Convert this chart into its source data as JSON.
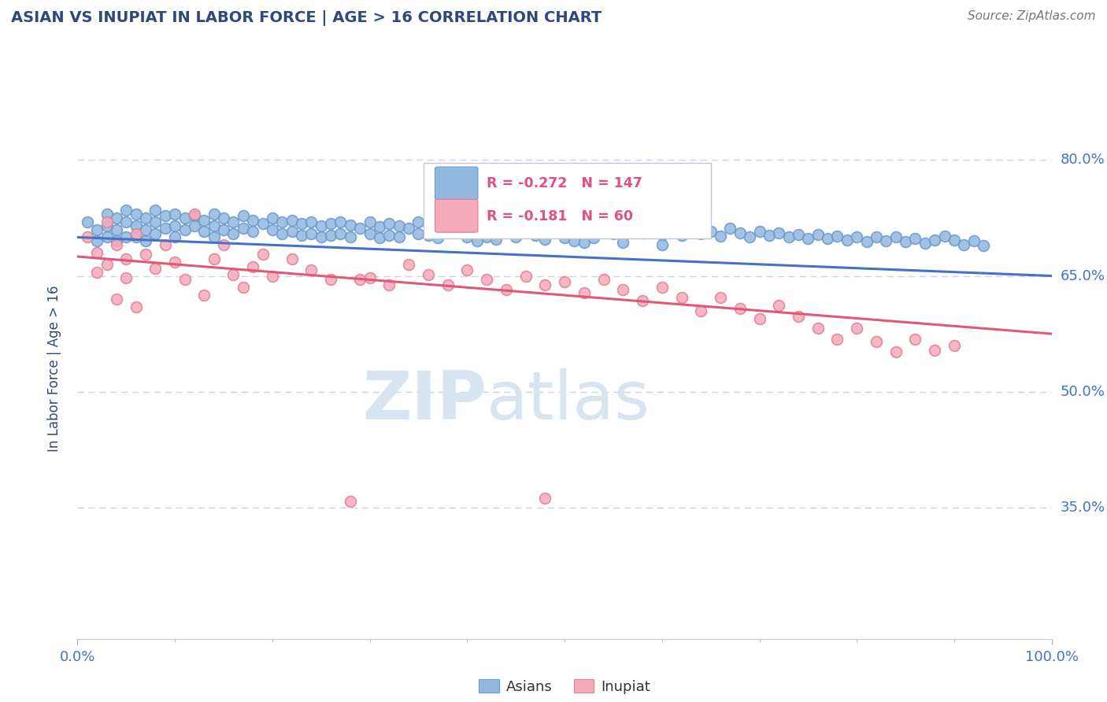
{
  "title": "ASIAN VS INUPIAT IN LABOR FORCE | AGE > 16 CORRELATION CHART",
  "source_text": "Source: ZipAtlas.com",
  "ylabel": "In Labor Force | Age > 16",
  "xlim": [
    0.0,
    1.0
  ],
  "ylim": [
    0.18,
    0.88
  ],
  "yticks": [
    0.35,
    0.5,
    0.65,
    0.8
  ],
  "ytick_labels": [
    "35.0%",
    "50.0%",
    "65.0%",
    "80.0%"
  ],
  "xtick_labels": [
    "0.0%",
    "100.0%"
  ],
  "title_color": "#2e4a7a",
  "source_color": "#777777",
  "axis_label_color": "#2e4a7a",
  "tick_label_color": "#4472c4",
  "grid_color": "#c8d4e8",
  "watermark_zip": "ZIP",
  "watermark_atlas": "atlas",
  "watermark_color": "#d8e4f0",
  "legend_R1": "-0.272",
  "legend_N1": "147",
  "legend_R2": "-0.181",
  "legend_N2": "60",
  "legend_value_color": "#e05080",
  "legend_color": "#4472c4",
  "blue_color": "#93b8df",
  "pink_color": "#f5aabb",
  "blue_edge_color": "#6699cc",
  "pink_edge_color": "#e08090",
  "blue_line_color": "#4472c4",
  "pink_line_color": "#e05878",
  "blue_intercept": 0.7,
  "blue_slope": -0.05,
  "pink_intercept": 0.675,
  "pink_slope": -0.1,
  "blue_scatter": [
    [
      0.01,
      0.72
    ],
    [
      0.02,
      0.71
    ],
    [
      0.02,
      0.695
    ],
    [
      0.03,
      0.73
    ],
    [
      0.03,
      0.715
    ],
    [
      0.03,
      0.7
    ],
    [
      0.04,
      0.725
    ],
    [
      0.04,
      0.71
    ],
    [
      0.04,
      0.695
    ],
    [
      0.05,
      0.735
    ],
    [
      0.05,
      0.72
    ],
    [
      0.05,
      0.7
    ],
    [
      0.06,
      0.73
    ],
    [
      0.06,
      0.715
    ],
    [
      0.06,
      0.7
    ],
    [
      0.07,
      0.725
    ],
    [
      0.07,
      0.71
    ],
    [
      0.07,
      0.695
    ],
    [
      0.08,
      0.735
    ],
    [
      0.08,
      0.72
    ],
    [
      0.08,
      0.705
    ],
    [
      0.09,
      0.728
    ],
    [
      0.09,
      0.712
    ],
    [
      0.1,
      0.73
    ],
    [
      0.1,
      0.715
    ],
    [
      0.1,
      0.7
    ],
    [
      0.11,
      0.725
    ],
    [
      0.11,
      0.71
    ],
    [
      0.12,
      0.728
    ],
    [
      0.12,
      0.715
    ],
    [
      0.13,
      0.722
    ],
    [
      0.13,
      0.708
    ],
    [
      0.14,
      0.73
    ],
    [
      0.14,
      0.715
    ],
    [
      0.14,
      0.7
    ],
    [
      0.15,
      0.725
    ],
    [
      0.15,
      0.71
    ],
    [
      0.16,
      0.72
    ],
    [
      0.16,
      0.705
    ],
    [
      0.17,
      0.728
    ],
    [
      0.17,
      0.712
    ],
    [
      0.18,
      0.722
    ],
    [
      0.18,
      0.708
    ],
    [
      0.19,
      0.718
    ],
    [
      0.2,
      0.725
    ],
    [
      0.2,
      0.71
    ],
    [
      0.21,
      0.72
    ],
    [
      0.21,
      0.705
    ],
    [
      0.22,
      0.722
    ],
    [
      0.22,
      0.708
    ],
    [
      0.23,
      0.718
    ],
    [
      0.23,
      0.703
    ],
    [
      0.24,
      0.72
    ],
    [
      0.24,
      0.705
    ],
    [
      0.25,
      0.715
    ],
    [
      0.25,
      0.7
    ],
    [
      0.26,
      0.718
    ],
    [
      0.26,
      0.703
    ],
    [
      0.27,
      0.72
    ],
    [
      0.27,
      0.705
    ],
    [
      0.28,
      0.716
    ],
    [
      0.28,
      0.701
    ],
    [
      0.29,
      0.712
    ],
    [
      0.3,
      0.72
    ],
    [
      0.3,
      0.705
    ],
    [
      0.31,
      0.714
    ],
    [
      0.31,
      0.699
    ],
    [
      0.32,
      0.718
    ],
    [
      0.32,
      0.703
    ],
    [
      0.33,
      0.715
    ],
    [
      0.33,
      0.7
    ],
    [
      0.34,
      0.712
    ],
    [
      0.35,
      0.72
    ],
    [
      0.35,
      0.705
    ],
    [
      0.36,
      0.718
    ],
    [
      0.36,
      0.703
    ],
    [
      0.37,
      0.714
    ],
    [
      0.37,
      0.699
    ],
    [
      0.38,
      0.722
    ],
    [
      0.38,
      0.707
    ],
    [
      0.39,
      0.712
    ],
    [
      0.4,
      0.716
    ],
    [
      0.4,
      0.701
    ],
    [
      0.41,
      0.71
    ],
    [
      0.41,
      0.695
    ],
    [
      0.42,
      0.715
    ],
    [
      0.42,
      0.7
    ],
    [
      0.43,
      0.712
    ],
    [
      0.43,
      0.697
    ],
    [
      0.44,
      0.708
    ],
    [
      0.45,
      0.716
    ],
    [
      0.45,
      0.701
    ],
    [
      0.46,
      0.71
    ],
    [
      0.47,
      0.718
    ],
    [
      0.47,
      0.703
    ],
    [
      0.48,
      0.712
    ],
    [
      0.48,
      0.697
    ],
    [
      0.49,
      0.708
    ],
    [
      0.5,
      0.714
    ],
    [
      0.5,
      0.699
    ],
    [
      0.51,
      0.71
    ],
    [
      0.51,
      0.695
    ],
    [
      0.52,
      0.708
    ],
    [
      0.52,
      0.693
    ],
    [
      0.53,
      0.714
    ],
    [
      0.53,
      0.699
    ],
    [
      0.54,
      0.71
    ],
    [
      0.55,
      0.705
    ],
    [
      0.55,
      0.72
    ],
    [
      0.56,
      0.708
    ],
    [
      0.56,
      0.693
    ],
    [
      0.57,
      0.712
    ],
    [
      0.58,
      0.706
    ],
    [
      0.59,
      0.71
    ],
    [
      0.6,
      0.704
    ],
    [
      0.6,
      0.69
    ],
    [
      0.61,
      0.708
    ],
    [
      0.62,
      0.703
    ],
    [
      0.63,
      0.71
    ],
    [
      0.64,
      0.705
    ],
    [
      0.65,
      0.708
    ],
    [
      0.66,
      0.702
    ],
    [
      0.67,
      0.712
    ],
    [
      0.68,
      0.706
    ],
    [
      0.69,
      0.7
    ],
    [
      0.7,
      0.708
    ],
    [
      0.71,
      0.703
    ],
    [
      0.72,
      0.706
    ],
    [
      0.73,
      0.7
    ],
    [
      0.74,
      0.704
    ],
    [
      0.75,
      0.698
    ],
    [
      0.76,
      0.704
    ],
    [
      0.77,
      0.698
    ],
    [
      0.78,
      0.702
    ],
    [
      0.79,
      0.696
    ],
    [
      0.8,
      0.7
    ],
    [
      0.81,
      0.694
    ],
    [
      0.82,
      0.7
    ],
    [
      0.83,
      0.695
    ],
    [
      0.84,
      0.7
    ],
    [
      0.85,
      0.694
    ],
    [
      0.86,
      0.698
    ],
    [
      0.87,
      0.692
    ],
    [
      0.88,
      0.696
    ],
    [
      0.89,
      0.702
    ],
    [
      0.9,
      0.696
    ],
    [
      0.91,
      0.69
    ],
    [
      0.92,
      0.695
    ],
    [
      0.93,
      0.689
    ]
  ],
  "pink_scatter": [
    [
      0.01,
      0.7
    ],
    [
      0.02,
      0.68
    ],
    [
      0.02,
      0.655
    ],
    [
      0.03,
      0.72
    ],
    [
      0.03,
      0.665
    ],
    [
      0.04,
      0.69
    ],
    [
      0.04,
      0.62
    ],
    [
      0.05,
      0.672
    ],
    [
      0.05,
      0.648
    ],
    [
      0.06,
      0.705
    ],
    [
      0.06,
      0.61
    ],
    [
      0.07,
      0.678
    ],
    [
      0.08,
      0.66
    ],
    [
      0.09,
      0.69
    ],
    [
      0.1,
      0.668
    ],
    [
      0.11,
      0.645
    ],
    [
      0.12,
      0.73
    ],
    [
      0.13,
      0.625
    ],
    [
      0.14,
      0.672
    ],
    [
      0.15,
      0.69
    ],
    [
      0.16,
      0.652
    ],
    [
      0.17,
      0.635
    ],
    [
      0.18,
      0.662
    ],
    [
      0.19,
      0.678
    ],
    [
      0.2,
      0.65
    ],
    [
      0.22,
      0.672
    ],
    [
      0.24,
      0.658
    ],
    [
      0.26,
      0.645
    ],
    [
      0.28,
      0.358
    ],
    [
      0.29,
      0.645
    ],
    [
      0.3,
      0.648
    ],
    [
      0.32,
      0.638
    ],
    [
      0.34,
      0.665
    ],
    [
      0.36,
      0.652
    ],
    [
      0.38,
      0.638
    ],
    [
      0.4,
      0.658
    ],
    [
      0.42,
      0.645
    ],
    [
      0.44,
      0.632
    ],
    [
      0.46,
      0.65
    ],
    [
      0.48,
      0.362
    ],
    [
      0.48,
      0.638
    ],
    [
      0.5,
      0.642
    ],
    [
      0.52,
      0.628
    ],
    [
      0.54,
      0.645
    ],
    [
      0.56,
      0.632
    ],
    [
      0.58,
      0.618
    ],
    [
      0.6,
      0.635
    ],
    [
      0.62,
      0.622
    ],
    [
      0.64,
      0.605
    ],
    [
      0.66,
      0.622
    ],
    [
      0.68,
      0.608
    ],
    [
      0.7,
      0.595
    ],
    [
      0.72,
      0.612
    ],
    [
      0.74,
      0.598
    ],
    [
      0.76,
      0.582
    ],
    [
      0.78,
      0.568
    ],
    [
      0.8,
      0.582
    ],
    [
      0.82,
      0.565
    ],
    [
      0.84,
      0.552
    ],
    [
      0.86,
      0.568
    ],
    [
      0.88,
      0.554
    ],
    [
      0.9,
      0.56
    ]
  ]
}
